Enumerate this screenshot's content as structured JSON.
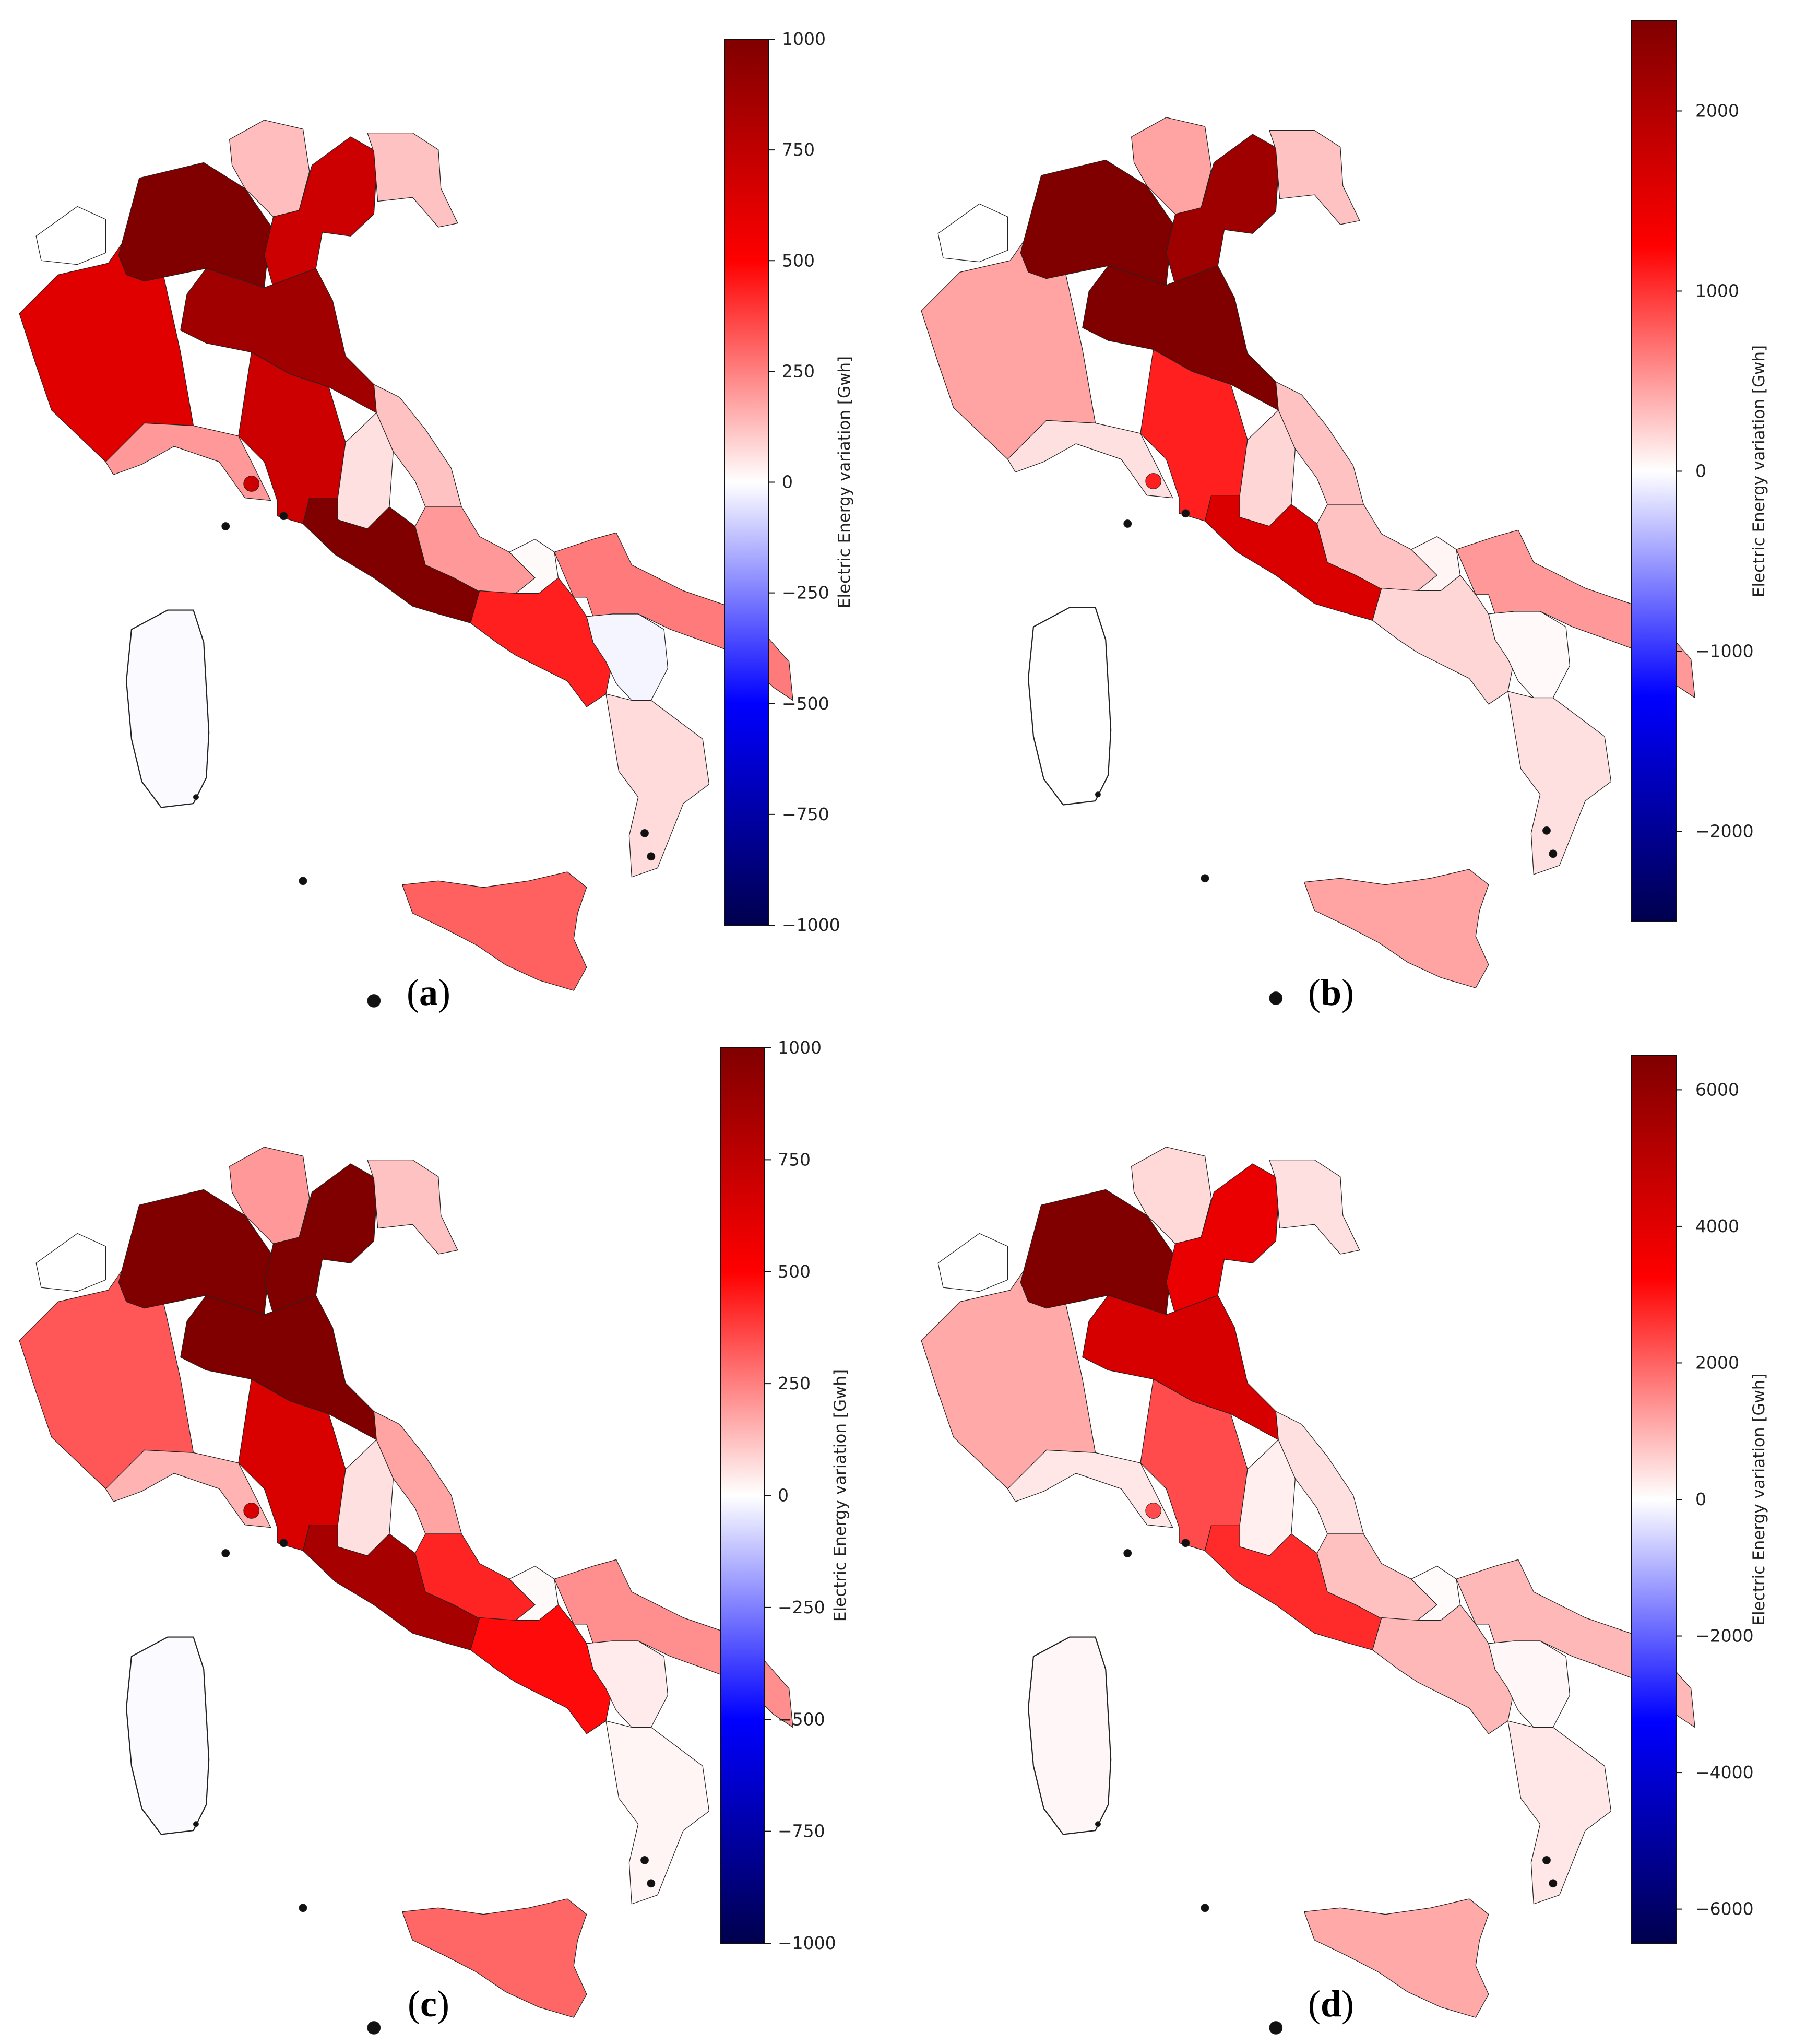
{
  "colorbar_label": "Electric Energy variation [Gwh]",
  "panels": [
    {
      "id": "a",
      "caption_open": "(",
      "caption_letter": "a",
      "caption_close": ")",
      "range": [
        -1000,
        1000
      ],
      "ticks": [
        1000,
        750,
        500,
        250,
        0,
        -250,
        -500,
        -750,
        -1000
      ],
      "tick_labels": [
        "1000",
        "750",
        "500",
        "250",
        "0",
        "−250",
        "−500",
        "−750",
        "−1000"
      ],
      "regions": {
        "valle_daosta": 0,
        "piemonte": 620,
        "liguria": 200,
        "lombardia": 1000,
        "trentino": 130,
        "veneto": 700,
        "friuli": 120,
        "emilia": 870,
        "toscana": 700,
        "umbria": 60,
        "marche": 120,
        "lazio": 1000,
        "abruzzo": 200,
        "molise": 10,
        "campania": 440,
        "puglia": 260,
        "basilicata": -20,
        "calabria": 70,
        "sicilia": 310,
        "sardegna": -10
      }
    },
    {
      "id": "b",
      "caption_open": "(",
      "caption_letter": "b",
      "caption_close": ")",
      "range": [
        -2500,
        2500
      ],
      "ticks": [
        2000,
        1000,
        0,
        -1000,
        -2000
      ],
      "tick_labels": [
        "2000",
        "1000",
        "0",
        "−1000",
        "−2000"
      ],
      "regions": {
        "valle_daosta": 0,
        "piemonte": 450,
        "liguria": 150,
        "lombardia": 2500,
        "trentino": 450,
        "veneto": 2200,
        "friuli": 300,
        "emilia": 2500,
        "toscana": 1100,
        "umbria": 200,
        "marche": 300,
        "lazio": 1600,
        "abruzzo": 300,
        "molise": 50,
        "campania": 200,
        "puglia": 500,
        "basilicata": 30,
        "calabria": 150,
        "sicilia": 450,
        "sardegna": 0
      }
    },
    {
      "id": "c",
      "caption_open": "(",
      "caption_letter": "c",
      "caption_close": ")",
      "range": [
        -1000,
        1000
      ],
      "ticks": [
        1000,
        750,
        500,
        250,
        0,
        -250,
        -500,
        -750,
        -1000
      ],
      "tick_labels": [
        "1000",
        "750",
        "500",
        "250",
        "0",
        "−250",
        "−500",
        "−750",
        "−1000"
      ],
      "regions": {
        "valle_daosta": 0,
        "piemonte": 330,
        "liguria": 150,
        "lombardia": 1000,
        "trentino": 200,
        "veneto": 1000,
        "friuli": 120,
        "emilia": 1000,
        "toscana": 650,
        "umbria": 60,
        "marche": 180,
        "lazio": 850,
        "abruzzo": 430,
        "molise": 10,
        "campania": 480,
        "puglia": 220,
        "basilicata": 40,
        "calabria": 20,
        "sicilia": 300,
        "sardegna": -10
      }
    },
    {
      "id": "d",
      "caption_open": "(",
      "caption_letter": "d",
      "caption_close": ")",
      "range": [
        -6500,
        6500
      ],
      "ticks": [
        6000,
        4000,
        2000,
        0,
        -2000,
        -4000,
        -6000
      ],
      "tick_labels": [
        "6000",
        "4000",
        "2000",
        "0",
        "−2000",
        "−4000",
        "−6000"
      ],
      "regions": {
        "valle_daosta": 0,
        "piemonte": 1100,
        "liguria": 300,
        "lombardia": 6500,
        "trentino": 500,
        "veneto": 3800,
        "friuli": 400,
        "emilia": 4300,
        "toscana": 2300,
        "umbria": 200,
        "marche": 400,
        "lazio": 2700,
        "abruzzo": 800,
        "molise": 50,
        "campania": 900,
        "puglia": 900,
        "basilicata": 100,
        "calabria": 300,
        "sicilia": 1100,
        "sardegna": 100
      }
    }
  ]
}
